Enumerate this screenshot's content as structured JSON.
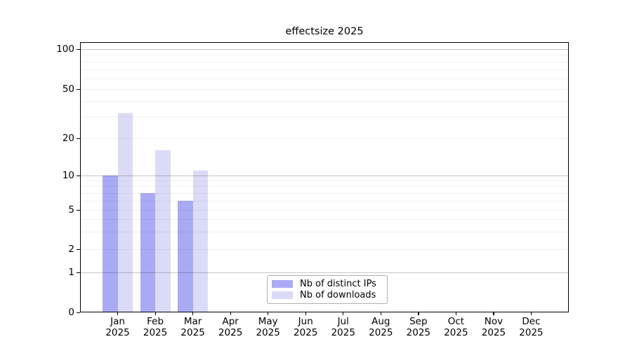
{
  "figure": {
    "title": "effectsize 2025"
  },
  "chart_data": {
    "type": "bar",
    "title": "effectsize 2025",
    "categories": [
      "Jan 2025",
      "Feb 2025",
      "Mar 2025",
      "Apr 2025",
      "May 2025",
      "Jun 2025",
      "Jul 2025",
      "Aug 2025",
      "Sep 2025",
      "Oct 2025",
      "Nov 2025",
      "Dec 2025"
    ],
    "x_tick_labels": [
      {
        "month": "Jan",
        "year": "2025"
      },
      {
        "month": "Feb",
        "year": "2025"
      },
      {
        "month": "Mar",
        "year": "2025"
      },
      {
        "month": "Apr",
        "year": "2025"
      },
      {
        "month": "May",
        "year": "2025"
      },
      {
        "month": "Jun",
        "year": "2025"
      },
      {
        "month": "Jul",
        "year": "2025"
      },
      {
        "month": "Aug",
        "year": "2025"
      },
      {
        "month": "Sep",
        "year": "2025"
      },
      {
        "month": "Oct",
        "year": "2025"
      },
      {
        "month": "Nov",
        "year": "2025"
      },
      {
        "month": "Dec",
        "year": "2025"
      }
    ],
    "series": [
      {
        "key": "distinct-ips",
        "name": "Nb of distinct IPs",
        "color": "#aaaaf4",
        "values": [
          10,
          7,
          6,
          0,
          0,
          0,
          0,
          0,
          0,
          0,
          0,
          0
        ]
      },
      {
        "key": "downloads",
        "name": "Nb of downloads",
        "color": "#dbdbf7",
        "values": [
          32,
          16,
          11,
          0,
          0,
          0,
          0,
          0,
          0,
          0,
          0,
          0
        ]
      }
    ],
    "y_axis": {
      "scale": "log-like",
      "tick_values": [
        0,
        1,
        2,
        5,
        10,
        20,
        50,
        100
      ],
      "tick_labels": [
        "0",
        "1",
        "2",
        "5",
        "10",
        "20",
        "50",
        "100"
      ],
      "major_grid_values": [
        1,
        10,
        100
      ],
      "minor_grid_values": [
        2,
        3,
        4,
        5,
        6,
        7,
        8,
        9,
        20,
        30,
        40,
        50,
        60,
        70,
        80,
        90
      ],
      "ylim": [
        0,
        113
      ]
    },
    "grid": true,
    "legend_position": "lower center"
  },
  "legend": {
    "items": [
      {
        "label": "Nb of distinct IPs",
        "color": "#aaaaf4"
      },
      {
        "label": "Nb of downloads",
        "color": "#dbdbf7"
      }
    ]
  }
}
